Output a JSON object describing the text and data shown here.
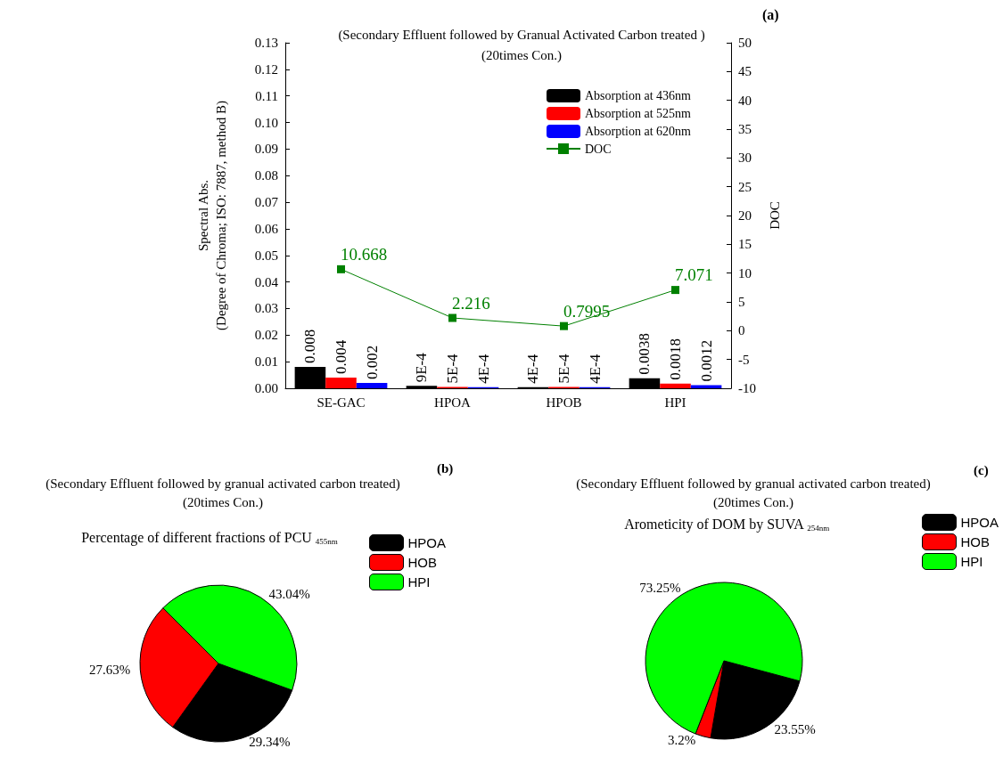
{
  "chart_data": [
    {
      "type": "bar",
      "title": "(Secondary Effluent followed by Granual Activated Carbon treated )",
      "subtitle": "(20times Con.)",
      "annotations": [
        "(a)"
      ],
      "ylabel": "Spectral Abs.\n(Degree of Chroma; ISO: 7887, method B)",
      "y2label": "DOC",
      "categories": [
        "SE-GAC",
        "HPOA",
        "HPOB",
        "HPI"
      ],
      "series": [
        {
          "name": "Absorption at 436nm",
          "color": "#000000",
          "values": [
            0.008,
            0.0009,
            0.0004,
            0.0038
          ],
          "value_labels": [
            "0.008",
            "9E-4",
            "4E-4",
            "0.0038"
          ]
        },
        {
          "name": "Absorption at 525nm",
          "color": "#ff0000",
          "values": [
            0.004,
            0.0005,
            0.0005,
            0.0018
          ],
          "value_labels": [
            "0.004",
            "5E-4",
            "5E-4",
            "0.0018"
          ]
        },
        {
          "name": "Absorption at 620nm",
          "color": "#0000ff",
          "values": [
            0.002,
            0.0004,
            0.0004,
            0.0012
          ],
          "value_labels": [
            "0.002",
            "4E-4",
            "4E-4",
            "0.0012"
          ]
        },
        {
          "name": "DOC",
          "type": "line",
          "axis": "y2",
          "color": "#008000",
          "values": [
            10.668,
            2.216,
            0.7995,
            7.071
          ],
          "value_labels": [
            "10.668",
            "2.216",
            "0.7995",
            "7.071"
          ]
        }
      ],
      "marker": "square",
      "ylim": [
        0,
        0.13
      ],
      "yticks": [
        {
          "value": 0,
          "label": "0.00"
        },
        {
          "value": 0.01,
          "label": "0.01"
        },
        {
          "value": 0.02,
          "label": "0.02"
        },
        {
          "value": 0.03,
          "label": "0.03"
        },
        {
          "value": 0.04,
          "label": "0.04"
        },
        {
          "value": 0.05,
          "label": "0.05"
        },
        {
          "value": 0.06,
          "label": "0.06"
        },
        {
          "value": 0.07,
          "label": "0.07"
        },
        {
          "value": 0.08,
          "label": "0.08"
        },
        {
          "value": 0.09,
          "label": "0.09"
        },
        {
          "value": 0.1,
          "label": "0.10"
        },
        {
          "value": 0.11,
          "label": "0.11"
        },
        {
          "value": 0.12,
          "label": "0.12"
        },
        {
          "value": 0.13,
          "label": "0.13"
        }
      ],
      "y2lim": [
        -10,
        50
      ],
      "y2ticks": [
        -10,
        -5,
        0,
        5,
        10,
        15,
        20,
        25,
        30,
        35,
        40,
        45,
        50
      ],
      "legend": "top right"
    },
    {
      "type": "pie",
      "title": "(Secondary Effluent followed by granual activated carbon treated)",
      "subtitle": "(20times Con.)",
      "annotations": [
        "(b)",
        "Percentage of different fractions of PCU $_{455nm}$"
      ],
      "categories": [
        "HPOA",
        "HOB",
        "HPI"
      ],
      "values": [
        29.34,
        27.63,
        43.04
      ],
      "colors": [
        "#000000",
        "#ff0000",
        "#00ff00"
      ],
      "value_labels": [
        "29.34%",
        "27.63%",
        "43.04%"
      ],
      "legend": "top right"
    },
    {
      "type": "pie",
      "title": "(Secondary Effluent followed by granual activated carbon treated)",
      "subtitle": "(20times Con.)",
      "annotations": [
        "(c)",
        "Arometicity of DOM by SUVA $_{254nm}$"
      ],
      "categories": [
        "HPOA",
        "HOB",
        "HPI"
      ],
      "values": [
        23.55,
        3.2,
        73.25
      ],
      "colors": [
        "#000000",
        "#ff0000",
        "#00ff00"
      ],
      "value_labels": [
        "23.55%",
        "3.2%",
        "73.25%"
      ],
      "legend": "top right"
    }
  ]
}
